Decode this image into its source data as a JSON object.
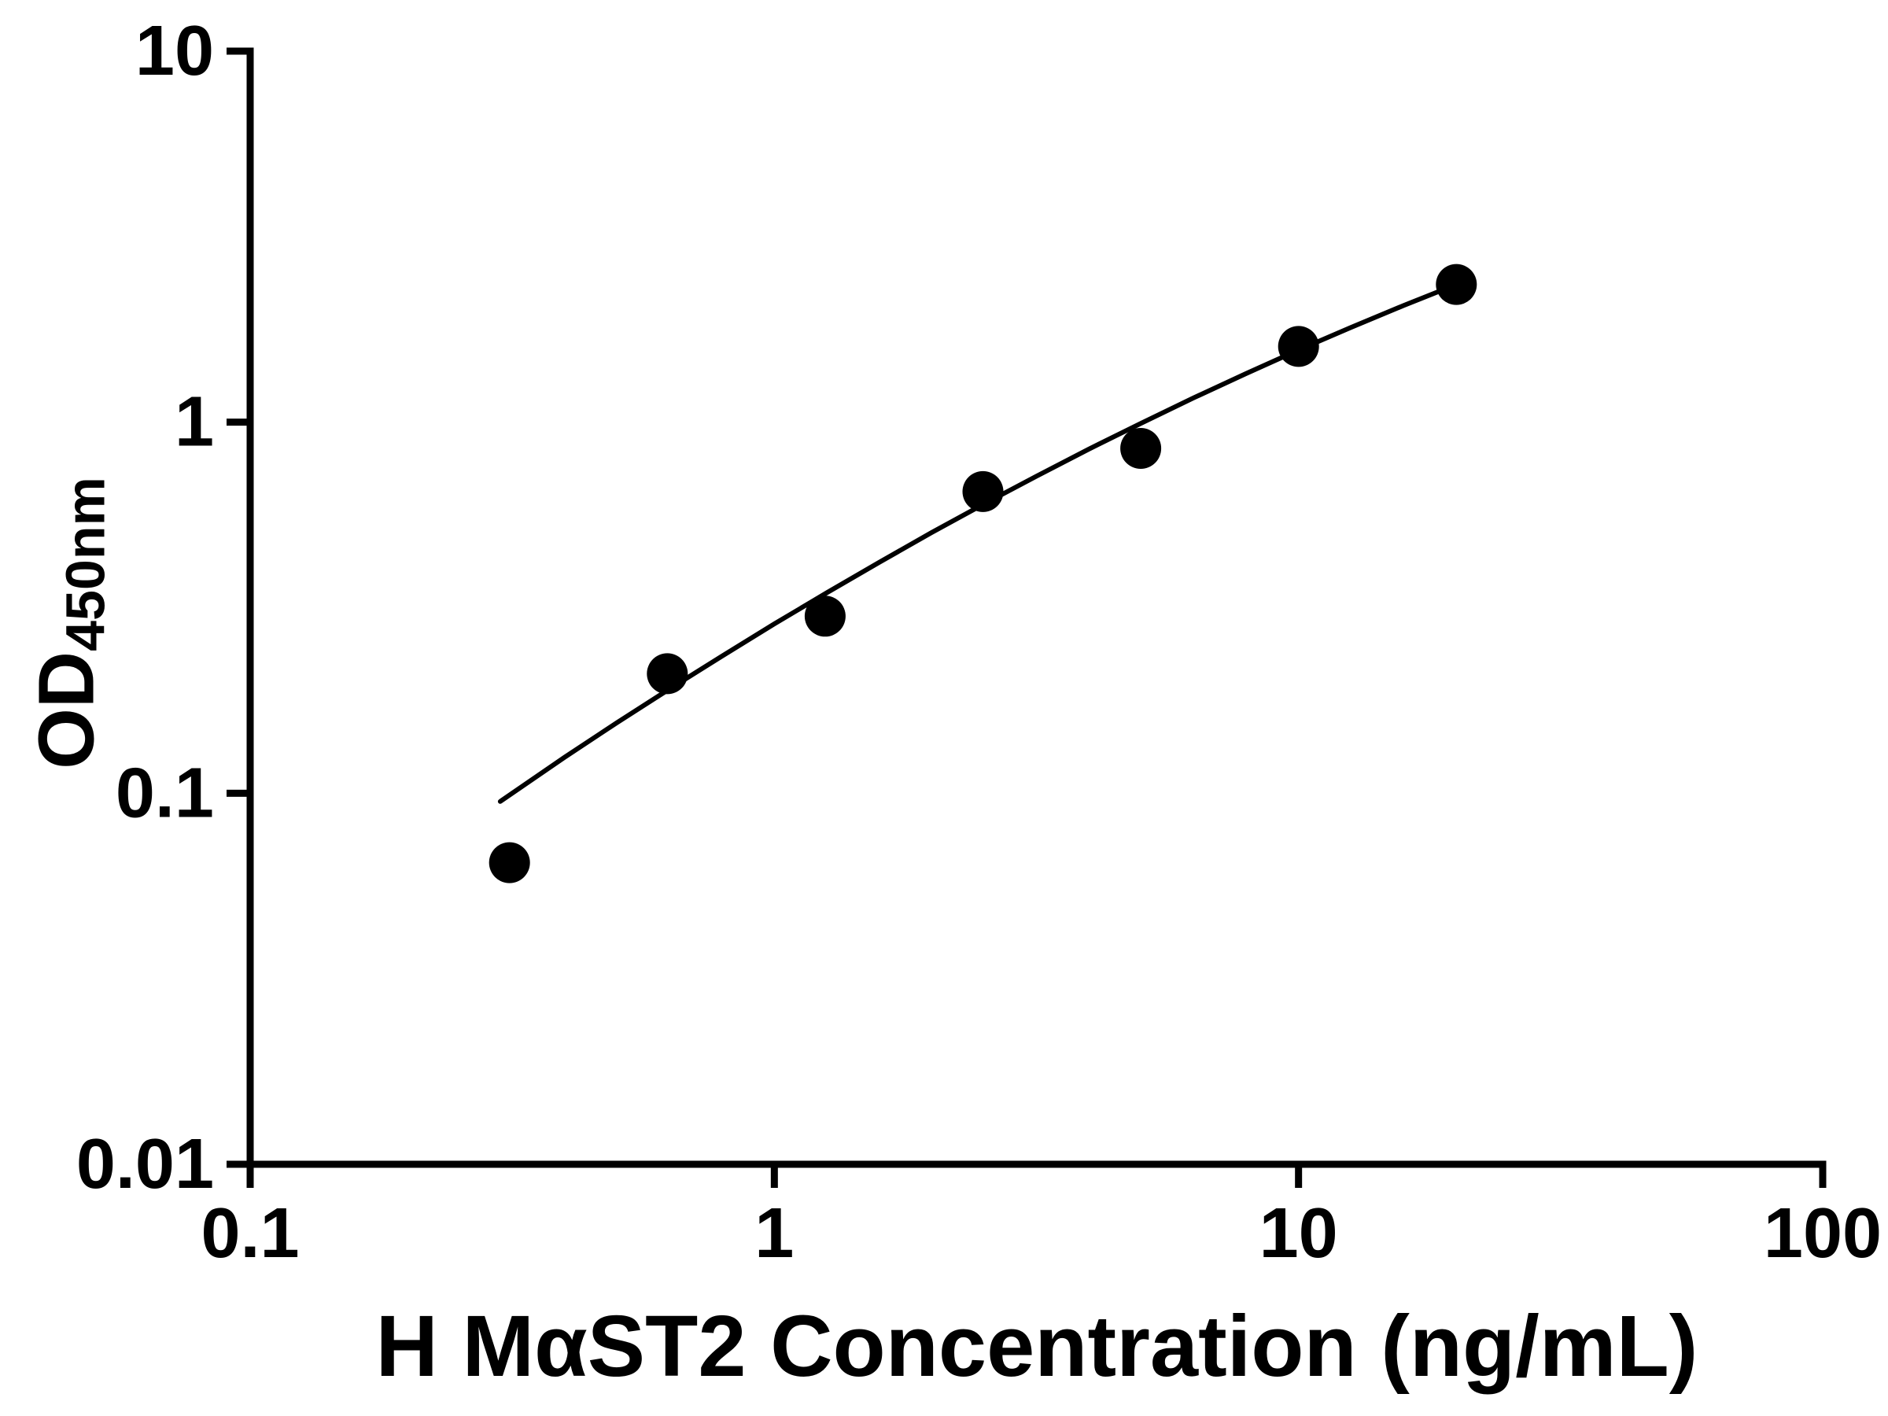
{
  "chart_data": {
    "type": "scatter",
    "title": "",
    "xlabel": "H MαST2 Concentration (ng/mL)",
    "ylabel_main": "OD",
    "ylabel_sub": "450nm",
    "x_scale": "log",
    "y_scale": "log",
    "xlim": [
      0.1,
      100
    ],
    "ylim": [
      0.01,
      10
    ],
    "x_ticks": [
      0.1,
      1,
      10,
      100
    ],
    "x_tick_labels": [
      "0.1",
      "1",
      "10",
      "100"
    ],
    "y_ticks": [
      0.01,
      0.1,
      1,
      10
    ],
    "y_tick_labels": [
      "0.01",
      "0.1",
      "1",
      "10"
    ],
    "grid": "off",
    "legend": "none",
    "marker_color": "#000000",
    "line_color": "#000000",
    "axis_color": "#000000",
    "points": {
      "x": [
        0.3125,
        0.625,
        1.25,
        2.5,
        5,
        10,
        20
      ],
      "y": [
        0.065,
        0.21,
        0.3,
        0.65,
        0.85,
        1.6,
        2.35
      ]
    },
    "fit_curve": {
      "x": [
        0.3,
        0.398,
        0.501,
        0.631,
        0.794,
        1.0,
        1.259,
        1.585,
        1.995,
        2.512,
        3.162,
        3.981,
        5.012,
        6.31,
        7.943,
        10.0,
        12.589,
        15.849,
        20.0
      ],
      "y": [
        0.095,
        0.125,
        0.155,
        0.191,
        0.234,
        0.286,
        0.347,
        0.419,
        0.504,
        0.602,
        0.715,
        0.846,
        0.994,
        1.163,
        1.352,
        1.565,
        1.8,
        2.061,
        2.35
      ]
    }
  }
}
